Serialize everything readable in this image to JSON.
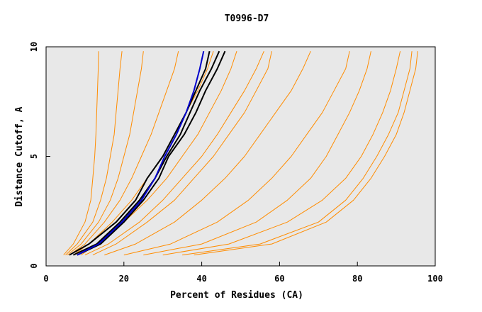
{
  "chart_data": {
    "type": "line",
    "title": "T0996-D7",
    "xlabel": "Percent of Residues (CA)",
    "ylabel": "Distance Cutoff, A",
    "xlim": [
      0,
      100
    ],
    "ylim": [
      0,
      10
    ],
    "xticks": [
      "0",
      "20",
      "40",
      "60",
      "80",
      "100"
    ],
    "yticks": [
      "0",
      "5",
      "10"
    ],
    "grid": false,
    "legend": "none",
    "colors": {
      "background": "#e8e8e8",
      "models": "#ff8c00",
      "highlight": "#000000",
      "reference": "#0000cc"
    },
    "y_levels": [
      0.5,
      1,
      2,
      3,
      4,
      5,
      6,
      7,
      8,
      9,
      9.8
    ],
    "series": [
      {
        "color": "#ff8c00",
        "y": [
          0.5,
          1,
          2,
          3,
          4,
          5,
          6,
          7,
          8,
          9,
          9.8
        ],
        "x": [
          4.5,
          7,
          10,
          11.5,
          12,
          12.5,
          12.8,
          13,
          13.2,
          13.4,
          13.5
        ]
      },
      {
        "color": "#ff8c00",
        "y": [
          0.5,
          1,
          2,
          3,
          4,
          5,
          6,
          7,
          8,
          9,
          9.8
        ],
        "x": [
          5,
          8,
          12,
          14,
          15.5,
          16.5,
          17.5,
          18,
          18.5,
          19,
          19.5
        ]
      },
      {
        "color": "#ff8c00",
        "y": [
          0.5,
          1,
          2,
          3,
          4,
          5,
          6,
          7,
          8,
          9,
          9.8
        ],
        "x": [
          5.5,
          9,
          13.5,
          16.5,
          18.5,
          20,
          21.5,
          22.5,
          23.5,
          24.5,
          25
        ]
      },
      {
        "color": "#ff8c00",
        "y": [
          0.5,
          1,
          2,
          3,
          4,
          5,
          6,
          7,
          8,
          9,
          9.8
        ],
        "x": [
          6,
          10,
          15,
          19,
          22,
          24.5,
          27,
          29,
          31,
          33,
          34
        ]
      },
      {
        "color": "#ff8c00",
        "y": [
          0.5,
          1,
          2,
          3,
          4,
          5,
          6,
          7,
          8,
          9,
          9.8
        ],
        "x": [
          7,
          11,
          17,
          22,
          26,
          30,
          33,
          36,
          39,
          41.5,
          43
        ]
      },
      {
        "color": "#ff8c00",
        "y": [
          0.5,
          1,
          2,
          3,
          4,
          5,
          6,
          7,
          8,
          9,
          9.8
        ],
        "x": [
          9,
          13,
          20,
          26,
          31,
          35,
          39,
          42,
          45,
          47.5,
          49
        ]
      },
      {
        "color": "#ff8c00",
        "y": [
          0.5,
          1,
          2,
          3,
          4,
          5,
          6,
          7,
          8,
          9,
          9.8
        ],
        "x": [
          12,
          18,
          26,
          33,
          38,
          43,
          47,
          51,
          54,
          57,
          58
        ]
      },
      {
        "color": "#ff8c00",
        "y": [
          0.5,
          1,
          2,
          3,
          4,
          5,
          6,
          7,
          8,
          9,
          9.8
        ],
        "x": [
          15,
          23,
          33,
          40,
          46,
          51,
          55,
          59,
          63,
          66,
          68
        ]
      },
      {
        "color": "#ff8c00",
        "y": [
          0.5,
          1,
          2,
          3,
          4,
          5,
          6,
          7,
          8,
          9,
          9.8
        ],
        "x": [
          20,
          32,
          44,
          52,
          58,
          63,
          67,
          71,
          74,
          77,
          78
        ]
      },
      {
        "color": "#ff8c00",
        "y": [
          0.5,
          1,
          2,
          3,
          4,
          5,
          6,
          7,
          8,
          9,
          9.8
        ],
        "x": [
          30,
          47,
          62,
          71,
          77,
          81,
          84,
          86.5,
          88.5,
          90,
          91
        ]
      },
      {
        "color": "#ff8c00",
        "y": [
          0.5,
          1,
          2,
          3,
          4,
          5,
          6,
          7,
          8,
          9,
          9.8
        ],
        "x": [
          35,
          55,
          70,
          77,
          81.5,
          85,
          88,
          90.5,
          92,
          93.5,
          94
        ]
      },
      {
        "color": "#ff8c00",
        "y": [
          0.5,
          1,
          2,
          3,
          4,
          5,
          6,
          7,
          8,
          9,
          9.8
        ],
        "x": [
          38,
          58,
          72,
          79,
          83.5,
          87,
          90,
          92,
          93.5,
          95,
          95.5
        ]
      },
      {
        "color": "#ff8c00",
        "y": [
          0.5,
          1,
          2,
          3,
          4,
          5,
          6,
          7,
          8,
          9,
          9.8
        ],
        "x": [
          25,
          40,
          54,
          62,
          68,
          72,
          75,
          78,
          80.5,
          82.5,
          83.5
        ]
      },
      {
        "color": "#ff8c00",
        "y": [
          0.5,
          1,
          2,
          3,
          4,
          5,
          6,
          7,
          8,
          9,
          9.8
        ],
        "x": [
          10,
          16,
          24,
          30,
          35,
          40,
          44,
          47.5,
          51,
          54,
          56
        ]
      },
      {
        "color": "#000000",
        "y": [
          0.5,
          1,
          2,
          3,
          4,
          5,
          6,
          7,
          8,
          9,
          9.8
        ],
        "x": [
          6,
          11,
          18,
          23,
          26,
          30,
          33,
          36,
          38.5,
          41,
          42
        ]
      },
      {
        "color": "#000000",
        "y": [
          0.5,
          1,
          2,
          3,
          4,
          5,
          6,
          7,
          8,
          9,
          9.8
        ],
        "x": [
          7,
          13,
          19,
          24,
          28,
          31,
          34.5,
          37,
          39.5,
          42.5,
          44.5
        ]
      },
      {
        "color": "#000000",
        "y": [
          0.5,
          1,
          2,
          3,
          4,
          5,
          6,
          7,
          8,
          9,
          9.8
        ],
        "x": [
          8,
          14,
          20,
          25,
          29,
          31.5,
          35.5,
          38.5,
          41,
          44,
          46
        ]
      },
      {
        "color": "#0000cc",
        "y": [
          0.5,
          1,
          2,
          3,
          4,
          5,
          6,
          7,
          8,
          9,
          9.8
        ],
        "x": [
          8,
          13.5,
          19.5,
          24.5,
          28,
          30.5,
          33.5,
          36,
          38,
          39.5,
          40.5
        ]
      }
    ]
  }
}
